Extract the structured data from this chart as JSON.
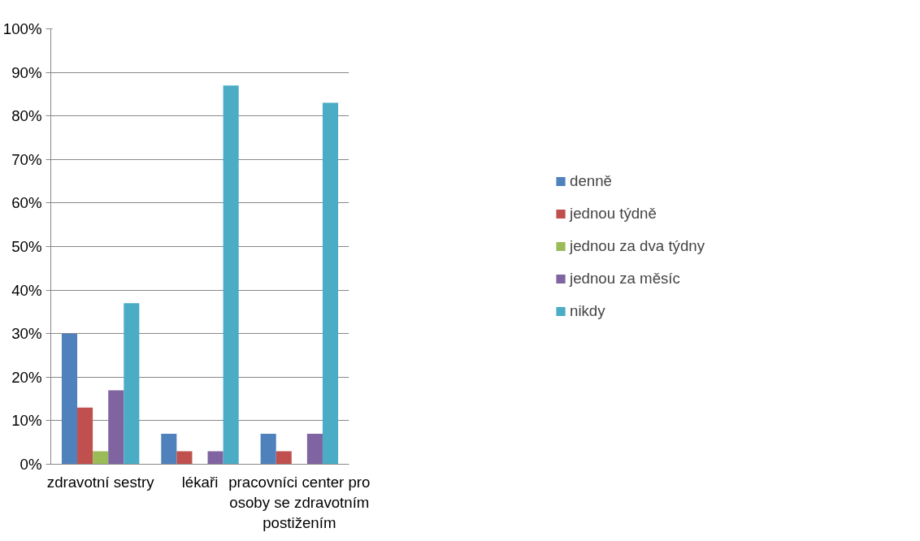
{
  "chart_data": {
    "type": "bar",
    "categories": [
      "zdravotní sestry",
      "lékaři",
      "pracovníci center pro osoby se zdravotním postižením"
    ],
    "series": [
      {
        "name": "denně",
        "color": "#4f81bd",
        "values": [
          30,
          7,
          7
        ]
      },
      {
        "name": "jednou týdně",
        "color": "#c0504d",
        "values": [
          13,
          3,
          3
        ]
      },
      {
        "name": "jednou za dva týdny",
        "color": "#9bbb59",
        "values": [
          3,
          0,
          0
        ]
      },
      {
        "name": "jednou za měsíc",
        "color": "#8064a2",
        "values": [
          17,
          3,
          7
        ]
      },
      {
        "name": "nikdy",
        "color": "#4bacc6",
        "values": [
          37,
          87,
          83
        ]
      }
    ],
    "ylim": [
      0,
      100
    ],
    "yticks": [
      {
        "value": 0,
        "label": "0%"
      },
      {
        "value": 10,
        "label": "10%"
      },
      {
        "value": 20,
        "label": "20%"
      },
      {
        "value": 30,
        "label": "30%"
      },
      {
        "value": 40,
        "label": "40%"
      },
      {
        "value": 50,
        "label": "50%"
      },
      {
        "value": 60,
        "label": "60%"
      },
      {
        "value": 70,
        "label": "70%"
      },
      {
        "value": 80,
        "label": "80%"
      },
      {
        "value": 90,
        "label": "90%"
      },
      {
        "value": 100,
        "label": "100%"
      }
    ],
    "grid": "y",
    "legend": "right"
  }
}
